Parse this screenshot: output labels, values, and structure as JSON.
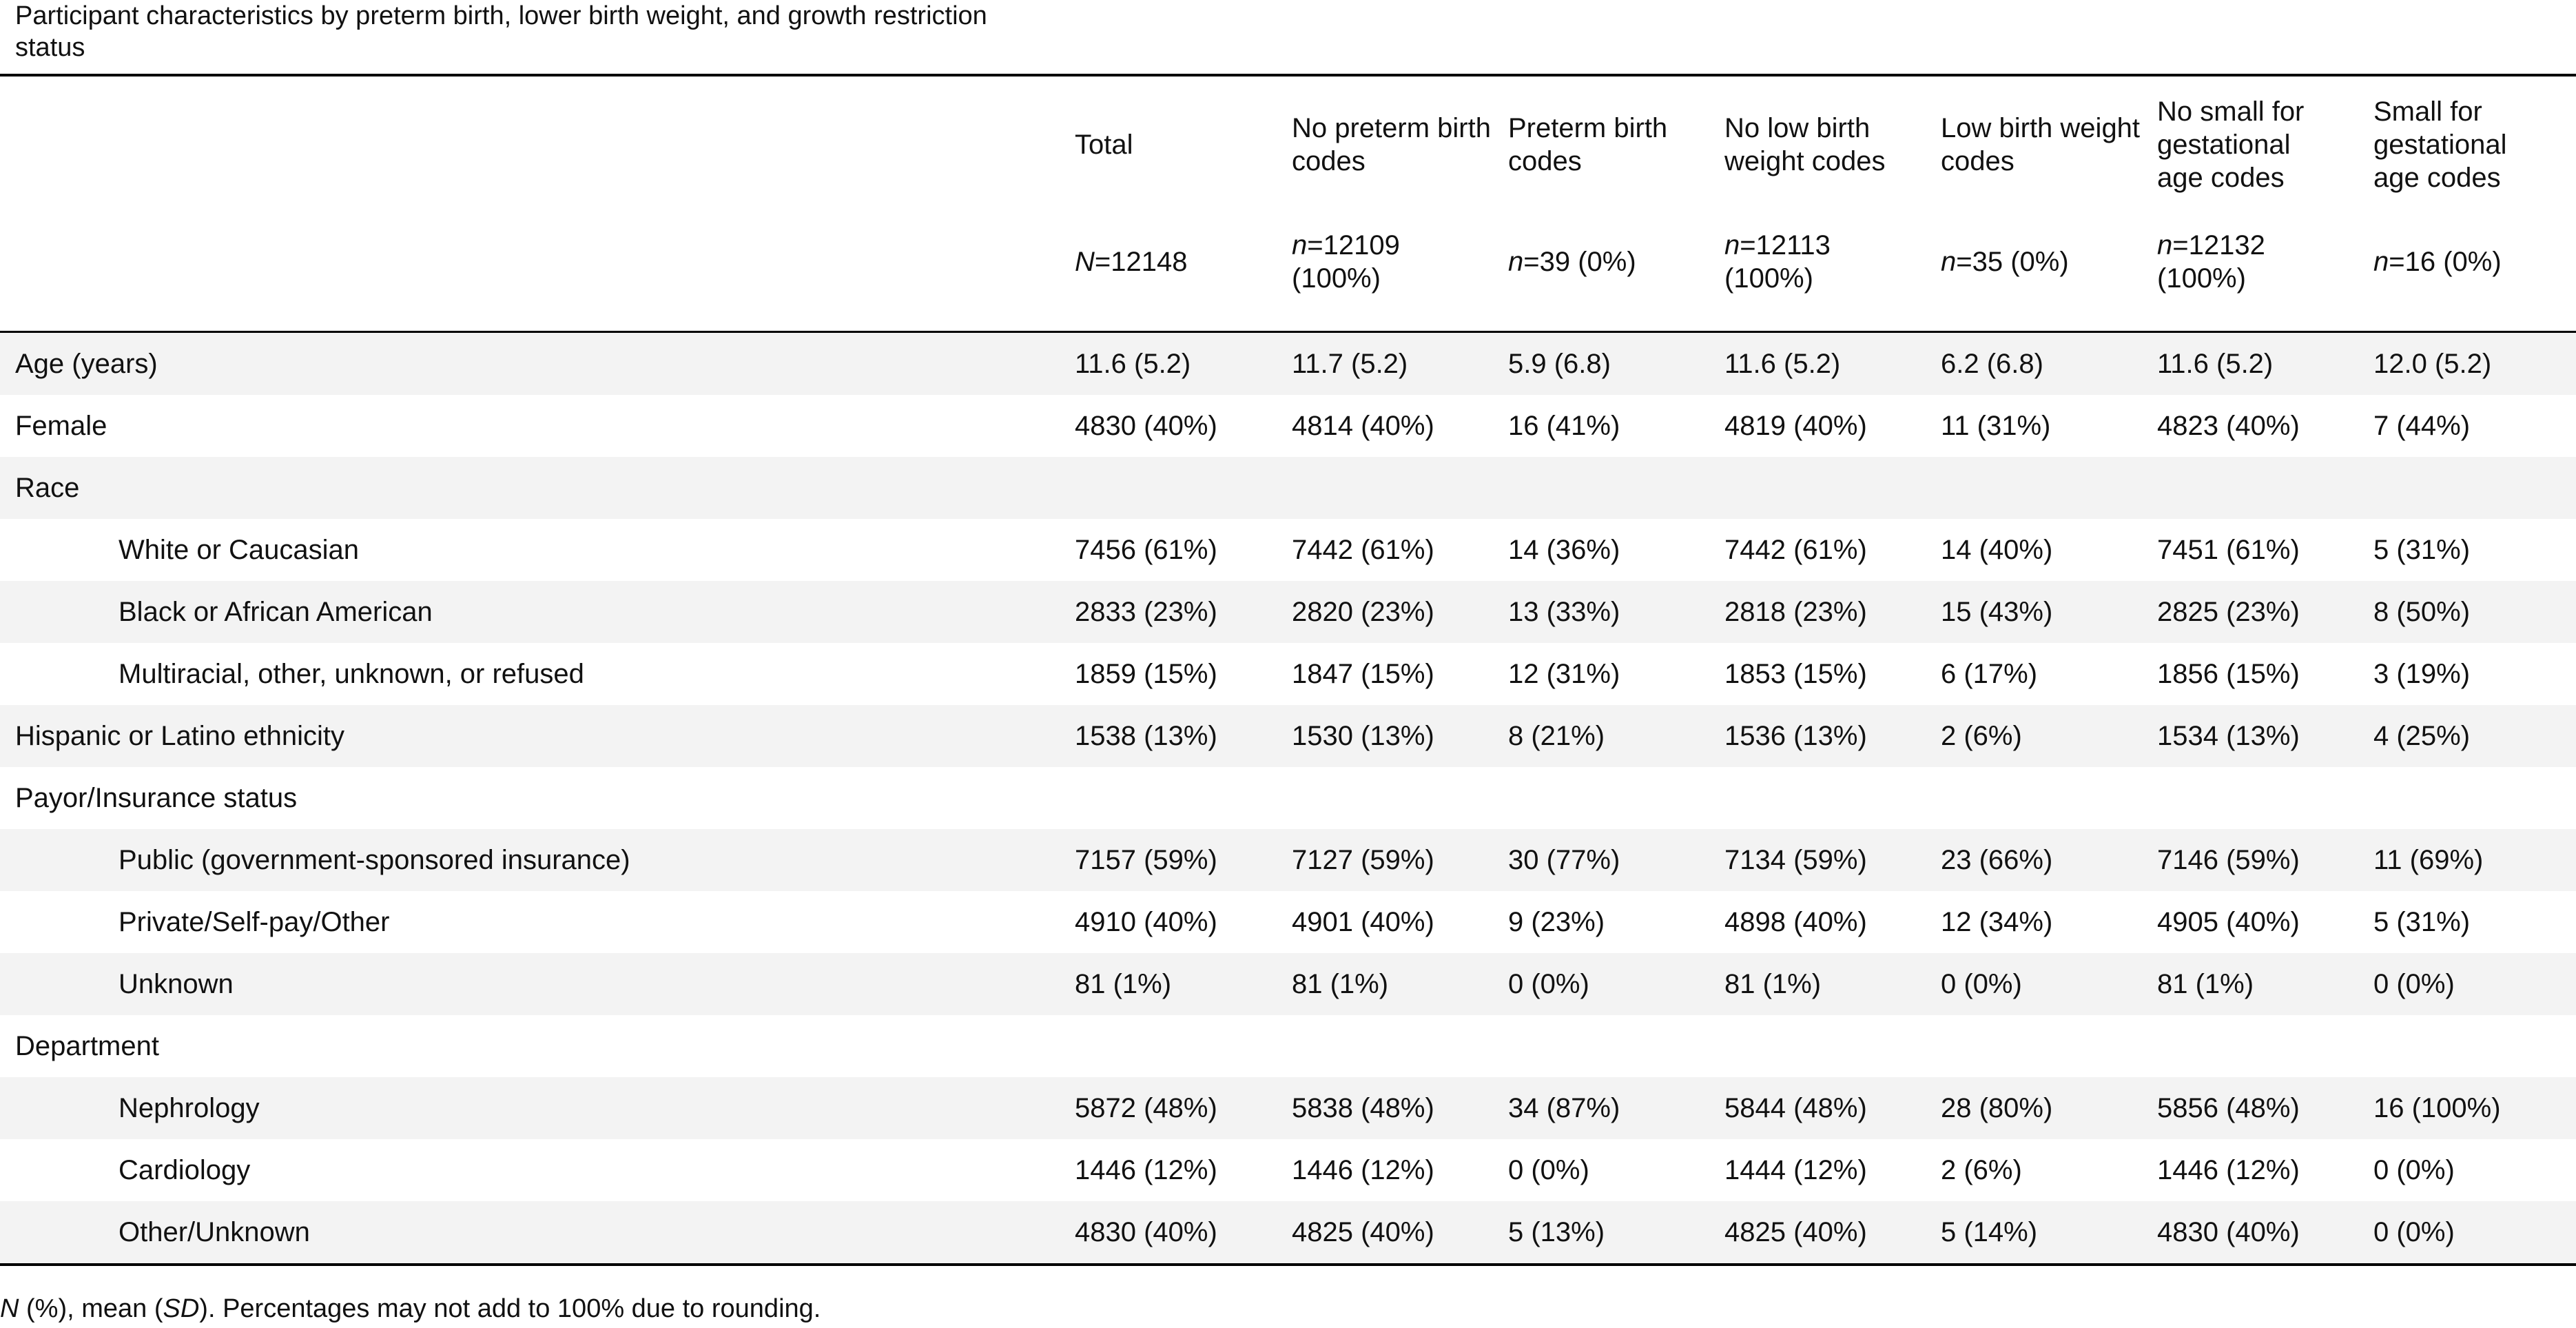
{
  "caption": "Participant characteristics by preterm birth, lower birth weight, and growth restriction status",
  "columns": [
    {
      "label": "Total",
      "count_prefix": "N",
      "count_text": "=12148"
    },
    {
      "label": "No preterm birth codes",
      "count_prefix": "n",
      "count_text": "=12109 (100%)"
    },
    {
      "label": "Preterm birth codes",
      "count_prefix": "n",
      "count_text": "=39 (0%)"
    },
    {
      "label": "No low birth weight codes",
      "count_prefix": "n",
      "count_text": "=12113 (100%)"
    },
    {
      "label": "Low birth weight codes",
      "count_prefix": "n",
      "count_text": "=35 (0%)"
    },
    {
      "label": "No small for gestational age codes",
      "count_prefix": "n",
      "count_text": "=12132 (100%)"
    },
    {
      "label": "Small for gestational age codes",
      "count_prefix": "n",
      "count_text": "=16 (0%)"
    }
  ],
  "rows": [
    {
      "label": "Age (years)",
      "indent": false,
      "values": [
        "11.6 (5.2)",
        "11.7 (5.2)",
        "5.9 (6.8)",
        "11.6 (5.2)",
        "6.2 (6.8)",
        "11.6 (5.2)",
        "12.0 (5.2)"
      ]
    },
    {
      "label": "Female",
      "indent": false,
      "values": [
        "4830 (40%)",
        "4814 (40%)",
        "16 (41%)",
        "4819 (40%)",
        "11 (31%)",
        "4823 (40%)",
        "7 (44%)"
      ]
    },
    {
      "label": "Race",
      "indent": false,
      "values": [
        "",
        "",
        "",
        "",
        "",
        "",
        ""
      ]
    },
    {
      "label": "White or Caucasian",
      "indent": true,
      "values": [
        "7456 (61%)",
        "7442 (61%)",
        "14 (36%)",
        "7442 (61%)",
        "14 (40%)",
        "7451 (61%)",
        "5 (31%)"
      ]
    },
    {
      "label": "Black or African American",
      "indent": true,
      "values": [
        "2833 (23%)",
        "2820 (23%)",
        "13 (33%)",
        "2818 (23%)",
        "15 (43%)",
        "2825 (23%)",
        "8 (50%)"
      ]
    },
    {
      "label": "Multiracial, other, unknown, or refused",
      "indent": true,
      "values": [
        "1859 (15%)",
        "1847 (15%)",
        "12 (31%)",
        "1853 (15%)",
        "6 (17%)",
        "1856 (15%)",
        "3 (19%)"
      ]
    },
    {
      "label": "Hispanic or Latino ethnicity",
      "indent": false,
      "values": [
        "1538 (13%)",
        "1530 (13%)",
        "8 (21%)",
        "1536 (13%)",
        "2 (6%)",
        "1534 (13%)",
        "4 (25%)"
      ]
    },
    {
      "label": "Payor/Insurance status",
      "indent": false,
      "values": [
        "",
        "",
        "",
        "",
        "",
        "",
        ""
      ]
    },
    {
      "label": "Public (government-sponsored insurance)",
      "indent": true,
      "values": [
        "7157 (59%)",
        "7127 (59%)",
        "30 (77%)",
        "7134 (59%)",
        "23 (66%)",
        "7146 (59%)",
        "11 (69%)"
      ]
    },
    {
      "label": "Private/Self-pay/Other",
      "indent": true,
      "values": [
        "4910 (40%)",
        "4901 (40%)",
        "9 (23%)",
        "4898 (40%)",
        "12 (34%)",
        "4905 (40%)",
        "5 (31%)"
      ]
    },
    {
      "label": "Unknown",
      "indent": true,
      "values": [
        "81 (1%)",
        "81 (1%)",
        "0 (0%)",
        "81 (1%)",
        "0 (0%)",
        "81 (1%)",
        "0 (0%)"
      ]
    },
    {
      "label": "Department",
      "indent": false,
      "values": [
        "",
        "",
        "",
        "",
        "",
        "",
        ""
      ]
    },
    {
      "label": "Nephrology",
      "indent": true,
      "values": [
        "5872 (48%)",
        "5838 (48%)",
        "34 (87%)",
        "5844 (48%)",
        "28 (80%)",
        "5856 (48%)",
        "16 (100%)"
      ]
    },
    {
      "label": "Cardiology",
      "indent": true,
      "values": [
        "1446 (12%)",
        "1446 (12%)",
        "0 (0%)",
        "1444 (12%)",
        "2 (6%)",
        "1446 (12%)",
        "0 (0%)"
      ]
    },
    {
      "label": "Other/Unknown",
      "indent": true,
      "values": [
        "4830 (40%)",
        "4825 (40%)",
        "5 (13%)",
        "4825 (40%)",
        "5 (14%)",
        "4830 (40%)",
        "0 (0%)"
      ]
    }
  ],
  "footnote": {
    "n_symbol": "N",
    "part1": " (%), mean (",
    "sd_symbol": "SD",
    "part2": "). Percentages may not add to 100% due to rounding."
  }
}
